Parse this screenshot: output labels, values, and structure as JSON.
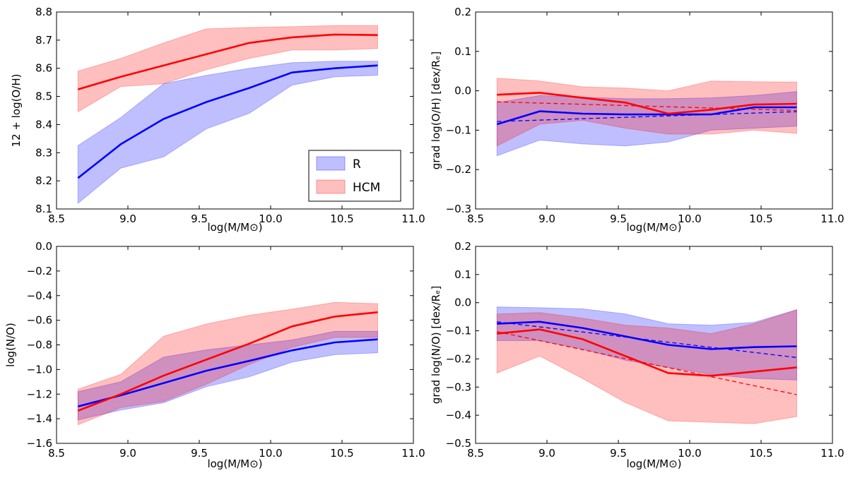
{
  "figure": {
    "xlabel": "log(M/M⊙)"
  },
  "legend": {
    "entries": [
      {
        "label": "R",
        "color": "#0000ff"
      },
      {
        "label": "HCM",
        "color": "#ff0000"
      }
    ]
  },
  "chart_data": [
    {
      "type": "line",
      "panel": "top-left",
      "title": "",
      "xlabel": "log(M/M⊙)",
      "ylabel": "12 + log(O/H)",
      "xlim": [
        8.5,
        11.0
      ],
      "ylim": [
        8.1,
        8.8
      ],
      "xticks": [
        "8.5",
        "9.0",
        "9.5",
        "10.0",
        "10.5",
        "11.0"
      ],
      "yticks": [
        "8.1",
        "8.2",
        "8.3",
        "8.4",
        "8.5",
        "8.6",
        "8.7",
        "8.8"
      ],
      "legend_position": "lower-right",
      "x": [
        8.65,
        8.95,
        9.25,
        9.55,
        9.85,
        10.15,
        10.45,
        10.75
      ],
      "series": [
        {
          "name": "R",
          "color": "#0000ff",
          "values": [
            8.21,
            8.33,
            8.42,
            8.48,
            8.53,
            8.585,
            8.6,
            8.61
          ],
          "lower": [
            8.12,
            8.245,
            8.285,
            8.385,
            8.44,
            8.54,
            8.57,
            8.575
          ],
          "upper": [
            8.325,
            8.425,
            8.545,
            8.575,
            8.6,
            8.62,
            8.625,
            8.625
          ]
        },
        {
          "name": "HCM",
          "color": "#ff0000",
          "values": [
            8.525,
            8.57,
            8.61,
            8.65,
            8.69,
            8.71,
            8.72,
            8.718
          ],
          "lower": [
            8.445,
            8.535,
            8.545,
            8.595,
            8.635,
            8.665,
            8.665,
            8.67
          ],
          "upper": [
            8.59,
            8.635,
            8.69,
            8.74,
            8.745,
            8.748,
            8.752,
            8.752
          ]
        }
      ],
      "fits": []
    },
    {
      "type": "line",
      "panel": "top-right",
      "title": "",
      "xlabel": "log(M/M⊙)",
      "ylabel": "grad log(O/H) [dex/Rₑ]",
      "xlim": [
        8.5,
        11.0
      ],
      "ylim": [
        -0.3,
        0.2
      ],
      "xticks": [
        "8.5",
        "9.0",
        "9.5",
        "10.0",
        "10.5",
        "11.0"
      ],
      "yticks": [
        "−0.3",
        "−0.2",
        "−0.1",
        "0.0",
        "0.1",
        "0.2"
      ],
      "x": [
        8.65,
        8.95,
        9.25,
        9.55,
        9.85,
        10.15,
        10.45,
        10.75
      ],
      "series": [
        {
          "name": "R",
          "color": "#0000ff",
          "values": [
            -0.085,
            -0.052,
            -0.058,
            -0.06,
            -0.06,
            -0.06,
            -0.042,
            -0.042
          ],
          "lower": [
            -0.165,
            -0.125,
            -0.135,
            -0.14,
            -0.13,
            -0.1,
            -0.095,
            -0.09
          ],
          "upper": [
            -0.03,
            -0.012,
            -0.016,
            -0.02,
            -0.02,
            -0.018,
            -0.012,
            -0.002
          ]
        },
        {
          "name": "HCM",
          "color": "#ff0000",
          "values": [
            -0.01,
            -0.005,
            -0.018,
            -0.03,
            -0.058,
            -0.048,
            -0.035,
            -0.033
          ],
          "lower": [
            -0.14,
            -0.085,
            -0.075,
            -0.095,
            -0.11,
            -0.11,
            -0.1,
            -0.108
          ],
          "upper": [
            0.032,
            0.025,
            0.01,
            0.007,
            0.0,
            0.025,
            0.023,
            0.022
          ]
        }
      ],
      "fits": [
        {
          "name": "R",
          "color": "#0000ff",
          "x": [
            8.65,
            10.75
          ],
          "y": [
            -0.078,
            -0.053
          ]
        },
        {
          "name": "HCM",
          "color": "#ff0000",
          "x": [
            8.65,
            10.75
          ],
          "y": [
            -0.028,
            -0.05
          ]
        }
      ]
    },
    {
      "type": "line",
      "panel": "bottom-left",
      "title": "",
      "xlabel": "log(M/M⊙)",
      "ylabel": "log(N/O)",
      "xlim": [
        8.5,
        11.0
      ],
      "ylim": [
        -1.6,
        0.0
      ],
      "xticks": [
        "8.5",
        "9.0",
        "9.5",
        "10.0",
        "10.5",
        "11.0"
      ],
      "yticks": [
        "−1.6",
        "−1.4",
        "−1.2",
        "−1.0",
        "−0.8",
        "−0.6",
        "−0.4",
        "−0.2",
        "0.0"
      ],
      "x": [
        8.65,
        8.95,
        9.25,
        9.55,
        9.85,
        10.15,
        10.45,
        10.75
      ],
      "series": [
        {
          "name": "R",
          "color": "#0000ff",
          "values": [
            -1.3,
            -1.21,
            -1.11,
            -1.01,
            -0.93,
            -0.845,
            -0.78,
            -0.755
          ],
          "lower": [
            -1.41,
            -1.33,
            -1.27,
            -1.14,
            -1.06,
            -0.94,
            -0.88,
            -0.865
          ],
          "upper": [
            -1.18,
            -1.1,
            -0.9,
            -0.84,
            -0.8,
            -0.76,
            -0.69,
            -0.69
          ]
        },
        {
          "name": "HCM",
          "color": "#ff0000",
          "values": [
            -1.335,
            -1.2,
            -1.05,
            -0.92,
            -0.79,
            -0.65,
            -0.57,
            -0.535
          ],
          "lower": [
            -1.45,
            -1.31,
            -1.26,
            -1.12,
            -0.96,
            -0.82,
            -0.74,
            -0.74
          ],
          "upper": [
            -1.16,
            -1.04,
            -0.73,
            -0.63,
            -0.56,
            -0.51,
            -0.455,
            -0.465
          ]
        }
      ],
      "fits": []
    },
    {
      "type": "line",
      "panel": "bottom-right",
      "title": "",
      "xlabel": "log(M/M⊙)",
      "ylabel": "grad log(N/O) [dex/Rₑ]",
      "xlim": [
        8.5,
        11.0
      ],
      "ylim": [
        -0.5,
        0.2
      ],
      "xticks": [
        "8.5",
        "9.0",
        "9.5",
        "10.0",
        "10.5",
        "11.0"
      ],
      "yticks": [
        "−0.5",
        "−0.4",
        "−0.3",
        "−0.2",
        "−0.1",
        "0.0",
        "0.1",
        "0.2"
      ],
      "x": [
        8.65,
        8.95,
        9.25,
        9.55,
        9.85,
        10.15,
        10.45,
        10.75
      ],
      "series": [
        {
          "name": "R",
          "color": "#0000ff",
          "values": [
            -0.075,
            -0.068,
            -0.09,
            -0.12,
            -0.15,
            -0.165,
            -0.158,
            -0.155
          ],
          "lower": [
            -0.135,
            -0.135,
            -0.165,
            -0.205,
            -0.23,
            -0.255,
            -0.27,
            -0.275
          ],
          "upper": [
            -0.015,
            -0.018,
            -0.022,
            -0.04,
            -0.075,
            -0.08,
            -0.07,
            -0.025
          ]
        },
        {
          "name": "HCM",
          "color": "#ff0000",
          "values": [
            -0.11,
            -0.095,
            -0.13,
            -0.19,
            -0.25,
            -0.26,
            -0.245,
            -0.23
          ],
          "lower": [
            -0.25,
            -0.19,
            -0.27,
            -0.355,
            -0.42,
            -0.425,
            -0.43,
            -0.405
          ],
          "upper": [
            -0.04,
            -0.035,
            -0.055,
            -0.08,
            -0.09,
            -0.11,
            -0.075,
            -0.025
          ]
        }
      ],
      "fits": [
        {
          "name": "R",
          "color": "#0000ff",
          "x": [
            8.65,
            10.75
          ],
          "y": [
            -0.068,
            -0.195
          ]
        },
        {
          "name": "HCM",
          "color": "#ff0000",
          "x": [
            8.65,
            10.75
          ],
          "y": [
            -0.103,
            -0.327
          ]
        }
      ]
    }
  ]
}
